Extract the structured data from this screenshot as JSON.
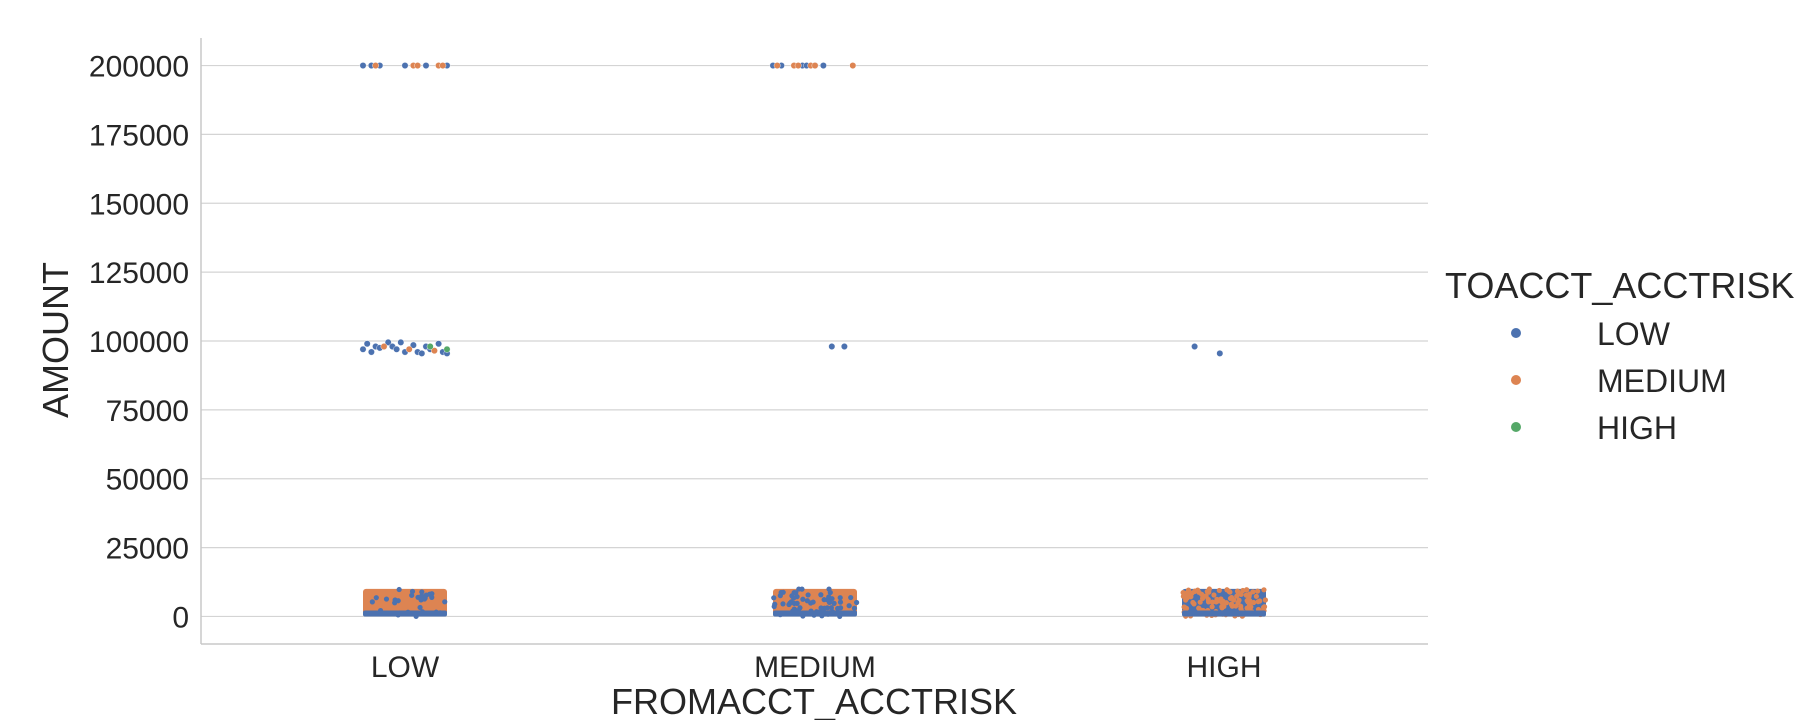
{
  "chart_data": {
    "type": "scatter",
    "subtype": "strip",
    "title": "",
    "xlabel": "FROMACCT_ACCTRISK",
    "ylabel": "AMOUNT",
    "categories": [
      "LOW",
      "MEDIUM",
      "HIGH"
    ],
    "yticks": [
      0,
      25000,
      50000,
      75000,
      100000,
      125000,
      150000,
      175000,
      200000
    ],
    "ylim": [
      -10000,
      210000
    ],
    "grid": true,
    "legend": {
      "title": "TOACCT_ACCTRISK",
      "placement": "right",
      "entries": [
        {
          "label": "LOW",
          "color": "#4c72b0"
        },
        {
          "label": "MEDIUM",
          "color": "#dd8452"
        },
        {
          "label": "HIGH",
          "color": "#55a868"
        }
      ]
    },
    "series": [
      {
        "name": "LOW",
        "color": "#4c72b0",
        "points": [
          {
            "category": "LOW",
            "offset": -0.1,
            "value": 200000
          },
          {
            "category": "LOW",
            "offset": -0.08,
            "value": 200000
          },
          {
            "category": "LOW",
            "offset": -0.06,
            "value": 200000
          },
          {
            "category": "LOW",
            "offset": 0.0,
            "value": 200000
          },
          {
            "category": "LOW",
            "offset": 0.05,
            "value": 200000
          },
          {
            "category": "LOW",
            "offset": 0.1,
            "value": 200000
          },
          {
            "category": "LOW",
            "offset": -0.1,
            "value": 97000
          },
          {
            "category": "LOW",
            "offset": -0.09,
            "value": 99000
          },
          {
            "category": "LOW",
            "offset": -0.08,
            "value": 96000
          },
          {
            "category": "LOW",
            "offset": -0.07,
            "value": 98000
          },
          {
            "category": "LOW",
            "offset": -0.06,
            "value": 97500
          },
          {
            "category": "LOW",
            "offset": -0.04,
            "value": 99500
          },
          {
            "category": "LOW",
            "offset": -0.03,
            "value": 98000
          },
          {
            "category": "LOW",
            "offset": -0.02,
            "value": 97000
          },
          {
            "category": "LOW",
            "offset": -0.01,
            "value": 99500
          },
          {
            "category": "LOW",
            "offset": 0.0,
            "value": 96000
          },
          {
            "category": "LOW",
            "offset": 0.02,
            "value": 98500
          },
          {
            "category": "LOW",
            "offset": 0.03,
            "value": 96000
          },
          {
            "category": "LOW",
            "offset": 0.04,
            "value": 95500
          },
          {
            "category": "LOW",
            "offset": 0.05,
            "value": 98000
          },
          {
            "category": "LOW",
            "offset": 0.06,
            "value": 97000
          },
          {
            "category": "LOW",
            "offset": 0.08,
            "value": 99000
          },
          {
            "category": "LOW",
            "offset": 0.09,
            "value": 96000
          },
          {
            "category": "LOW",
            "offset": 0.1,
            "value": 95500
          },
          {
            "category": "MEDIUM",
            "offset": -0.1,
            "value": 200000
          },
          {
            "category": "MEDIUM",
            "offset": -0.08,
            "value": 200000
          },
          {
            "category": "MEDIUM",
            "offset": -0.03,
            "value": 200000
          },
          {
            "category": "MEDIUM",
            "offset": -0.02,
            "value": 200000
          },
          {
            "category": "MEDIUM",
            "offset": 0.0,
            "value": 200000
          },
          {
            "category": "MEDIUM",
            "offset": 0.02,
            "value": 200000
          },
          {
            "category": "MEDIUM",
            "offset": 0.04,
            "value": 98000
          },
          {
            "category": "MEDIUM",
            "offset": 0.07,
            "value": 98000
          },
          {
            "category": "HIGH",
            "offset": -0.07,
            "value": 98000
          },
          {
            "category": "HIGH",
            "offset": -0.01,
            "value": 95500
          }
        ]
      },
      {
        "name": "MEDIUM",
        "color": "#dd8452",
        "points": [
          {
            "category": "LOW",
            "offset": -0.07,
            "value": 200000
          },
          {
            "category": "LOW",
            "offset": 0.02,
            "value": 200000
          },
          {
            "category": "LOW",
            "offset": 0.03,
            "value": 200000
          },
          {
            "category": "LOW",
            "offset": 0.08,
            "value": 200000
          },
          {
            "category": "LOW",
            "offset": 0.09,
            "value": 200000
          },
          {
            "category": "LOW",
            "offset": -0.05,
            "value": 98000
          },
          {
            "category": "LOW",
            "offset": 0.01,
            "value": 97000
          },
          {
            "category": "LOW",
            "offset": 0.07,
            "value": 96500
          },
          {
            "category": "MEDIUM",
            "offset": -0.09,
            "value": 200000
          },
          {
            "category": "MEDIUM",
            "offset": -0.05,
            "value": 200000
          },
          {
            "category": "MEDIUM",
            "offset": -0.04,
            "value": 200000
          },
          {
            "category": "MEDIUM",
            "offset": -0.01,
            "value": 200000
          },
          {
            "category": "MEDIUM",
            "offset": 0.0,
            "value": 200000
          },
          {
            "category": "MEDIUM",
            "offset": 0.09,
            "value": 200000
          }
        ]
      },
      {
        "name": "HIGH",
        "color": "#55a868",
        "points": [
          {
            "category": "LOW",
            "offset": 0.06,
            "value": 98000
          },
          {
            "category": "LOW",
            "offset": 0.1,
            "value": 97000
          }
        ]
      }
    ],
    "dense_clusters": [
      {
        "category": "LOW",
        "series": [
          "LOW",
          "MEDIUM",
          "HIGH"
        ],
        "value_range": [
          0,
          10000
        ],
        "dominant": "MEDIUM",
        "density": 1.0
      },
      {
        "category": "MEDIUM",
        "series": [
          "LOW",
          "MEDIUM",
          "HIGH"
        ],
        "value_range": [
          0,
          10000
        ],
        "dominant": "MEDIUM",
        "density": 0.8
      },
      {
        "category": "HIGH",
        "series": [
          "LOW",
          "MEDIUM",
          "HIGH"
        ],
        "value_range": [
          0,
          10000
        ],
        "dominant": "LOW",
        "density": 0.5
      }
    ]
  }
}
